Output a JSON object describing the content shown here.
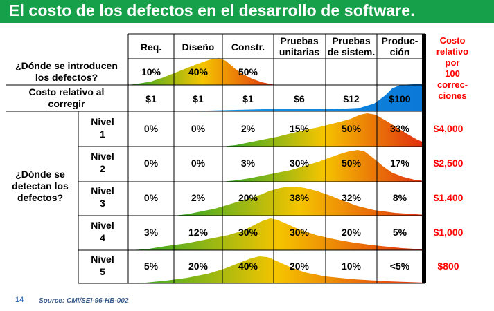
{
  "title": "El costo de los defectos en el desarrollo de software.",
  "columns": [
    "Req.",
    "Diseño",
    "Constr.",
    "Pruebas unitarias",
    "Pruebas de sistem.",
    "Produc-ción"
  ],
  "cost_header": "Costo relativo por 100 correc-ciones",
  "introduced": {
    "label": "¿Dónde se introducen los defectos?",
    "values": [
      "10%",
      "40%",
      "50%",
      "",
      "",
      ""
    ]
  },
  "cost_fix": {
    "label": "Costo relativo al corregir",
    "values": [
      "$1",
      "$1",
      "$1",
      "$6",
      "$12",
      "$100"
    ]
  },
  "detected_label": "¿Dónde se detectan los defectos?",
  "levels": [
    {
      "label": "Nivel 1",
      "values": [
        "0%",
        "0%",
        "2%",
        "15%",
        "50%",
        "33%"
      ],
      "cost": "$4,000"
    },
    {
      "label": "Nivel 2",
      "values": [
        "0%",
        "0%",
        "3%",
        "30%",
        "50%",
        "17%"
      ],
      "cost": "$2,500"
    },
    {
      "label": "Nivel 3",
      "values": [
        "0%",
        "2%",
        "20%",
        "38%",
        "32%",
        "8%"
      ],
      "cost": "$1,400"
    },
    {
      "label": "Nivel 4",
      "values": [
        "3%",
        "12%",
        "30%",
        "30%",
        "20%",
        "5%"
      ],
      "cost": "$1,000"
    },
    {
      "label": "Nivel 5",
      "values": [
        "5%",
        "20%",
        "40%",
        "20%",
        "10%",
        "<5%"
      ],
      "cost": "$800"
    }
  ],
  "footer": {
    "page_number": "14",
    "source": "Source: CMI/SEI-96-HB-002"
  },
  "colors": {
    "title_bg": "#16a04a",
    "cost_text": "#ff0000",
    "curve_start": "#2aa82a",
    "curve_mid": "#f5c400",
    "curve_end": "#e02a10",
    "cost_curve": "#1aa0e8"
  }
}
